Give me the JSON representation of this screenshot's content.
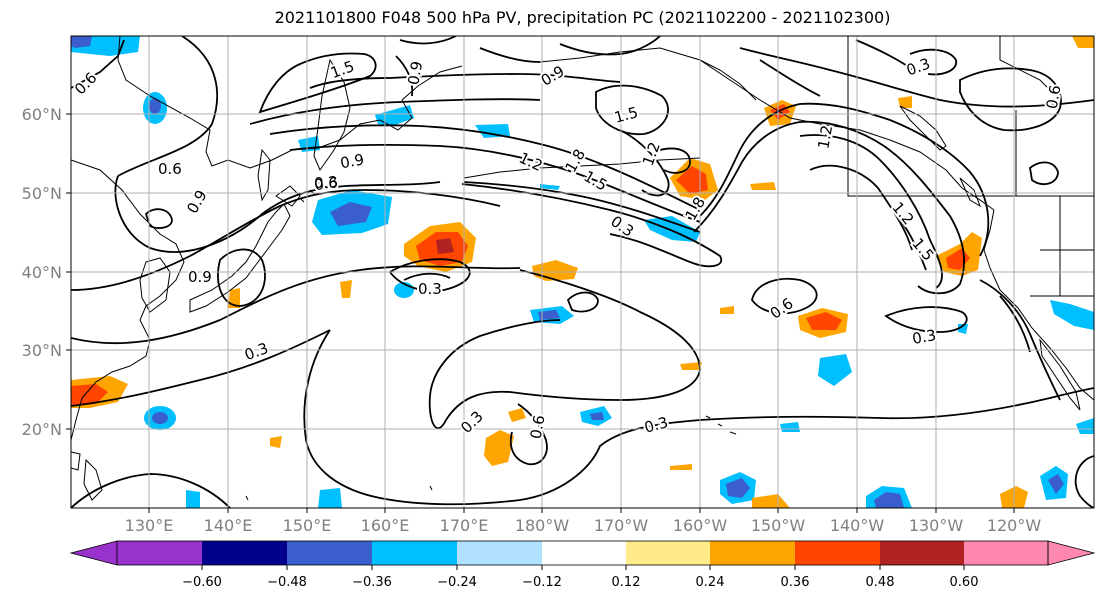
{
  "title": "2021101800 F048 500 hPa PV, precipitation PC (2021102200 - 2021102300)",
  "map": {
    "lat_ticks": [
      "60°N",
      "50°N",
      "40°N",
      "30°N",
      "20°N"
    ],
    "lon_ticks": [
      "130°E",
      "140°E",
      "150°E",
      "160°E",
      "170°E",
      "180°W",
      "170°W",
      "160°W",
      "150°W",
      "140°W",
      "130°W",
      "120°W"
    ]
  },
  "pv_contour_labels": [
    "0.6",
    "1.5",
    "0.9",
    "0.9",
    "0.3",
    "1.5",
    "0.6",
    "0.9",
    "0.6",
    "0.9",
    "1.2",
    "1.8",
    "1.5",
    "1.2",
    "0.3",
    "1.8",
    "0.9",
    "0.3",
    "0.6",
    "0.3",
    "0.3",
    "0.3",
    "0.6",
    "0.3",
    "0.3",
    "1.2",
    "1.2",
    "1.5",
    "0.6"
  ],
  "colorbar": {
    "colors": [
      "#9932cc",
      "#00008b",
      "#3a5fcd",
      "#00bfff",
      "#b0e2ff",
      "#ffffff",
      "#ffeb8a",
      "#ffa500",
      "#ff4500",
      "#b22222",
      "#ff88b0"
    ],
    "tick_labels": [
      "−0.60",
      "−0.48",
      "−0.36",
      "−0.24",
      "−0.12",
      "0.12",
      "0.24",
      "0.36",
      "0.48",
      "0.60"
    ]
  },
  "palette": {
    "land": "#000000",
    "grid": "#b0b0b0"
  }
}
